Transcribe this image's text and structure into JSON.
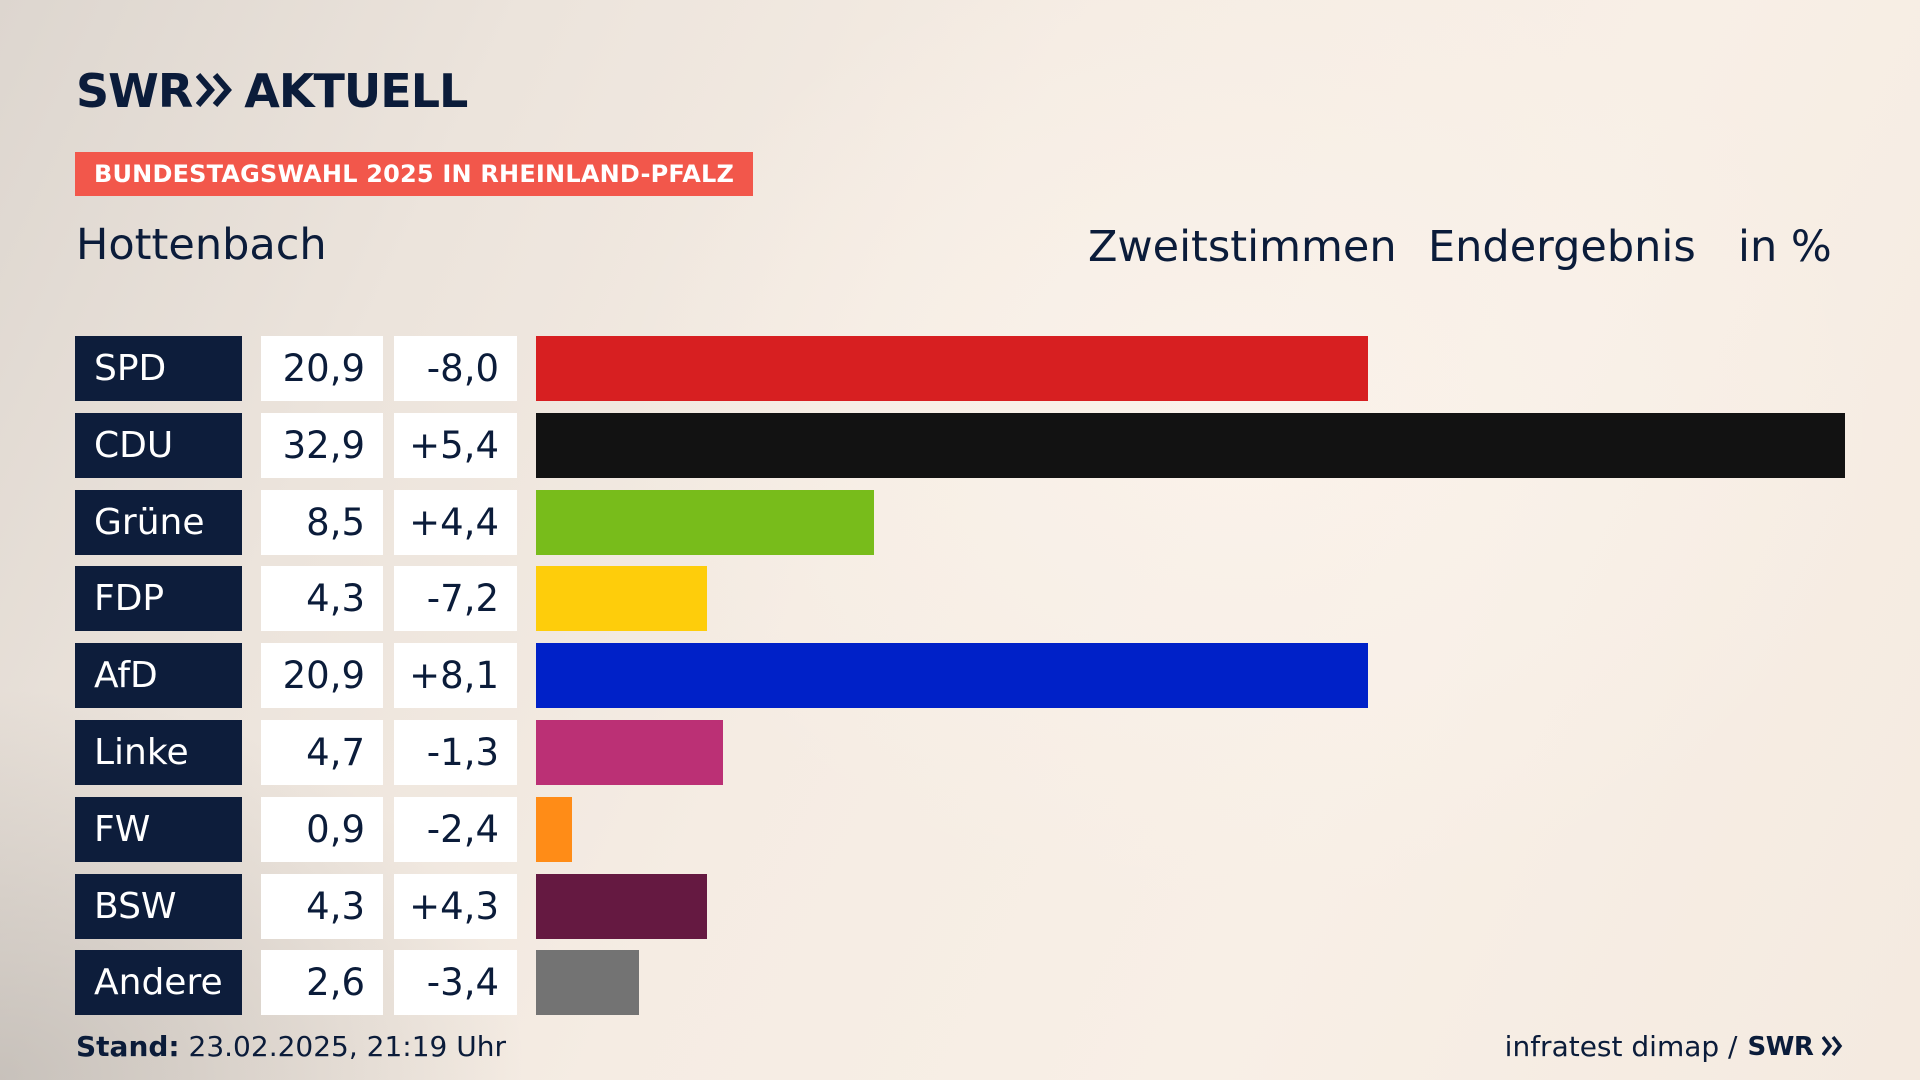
{
  "header": {
    "logo_brand": "SWR",
    "logo_text": "AKTUELL",
    "banner": "BUNDESTAGSWAHL 2025 IN RHEINLAND-PFALZ",
    "place": "Hottenbach",
    "col_label_1": "Zweitstimmen",
    "col_label_2": "Endergebnis",
    "col_label_3": "in %"
  },
  "chart_data": {
    "type": "bar",
    "categories": [
      "SPD",
      "CDU",
      "Grüne",
      "FDP",
      "AfD",
      "Linke",
      "FW",
      "BSW",
      "Andere"
    ],
    "values": [
      20.9,
      32.9,
      8.5,
      4.3,
      20.9,
      4.7,
      0.9,
      4.3,
      2.6
    ],
    "value_labels": [
      "20,9",
      "32,9",
      "8,5",
      "4,3",
      "20,9",
      "4,7",
      "0,9",
      "4,3",
      "2,6"
    ],
    "change_labels": [
      "-8,0",
      "+5,4",
      "+4,4",
      "-7,2",
      "+8,1",
      "-1,3",
      "-2,4",
      "+4,3",
      "-3,4"
    ],
    "changes": [
      -8.0,
      5.4,
      4.4,
      -7.2,
      8.1,
      -1.3,
      -2.4,
      4.3,
      -3.4
    ],
    "colors": [
      "#d71f21",
      "#121212",
      "#78bc1b",
      "#fecd0b",
      "#0021c8",
      "#bb3075",
      "#ff8c17",
      "#651941",
      "#737373"
    ],
    "ylim": [
      0,
      32.9
    ]
  },
  "footer": {
    "stand_label": "Stand:",
    "stand_value": "23.02.2025, 21:19 Uhr",
    "source": "infratest dimap /",
    "source_logo": "SWR"
  }
}
